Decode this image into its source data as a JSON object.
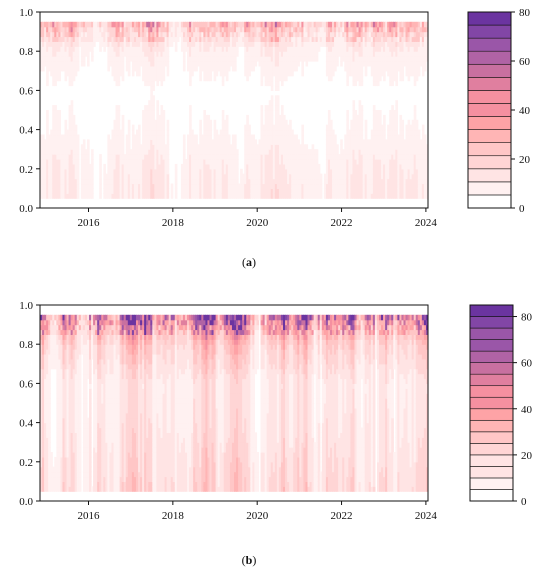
{
  "chart_data": [
    {
      "type": "heatmap",
      "panel_label": "(a)",
      "panel_letter": "a",
      "x_tick_labels": [
        "2016",
        "2018",
        "2020",
        "2022",
        "2024"
      ],
      "x_ticks": [
        2016,
        2018,
        2020,
        2022,
        2024
      ],
      "xlim": [
        2014.85,
        2024.05
      ],
      "y_tick_labels": [
        "0.0",
        "0.2",
        "0.4",
        "0.6",
        "0.8",
        "1.0"
      ],
      "y_ticks": [
        0.0,
        0.2,
        0.4,
        0.6,
        0.8,
        1.0
      ],
      "ylim": [
        0.0,
        1.0
      ],
      "y_data_range": [
        0.05,
        0.95
      ],
      "colorbar_tick_labels": [
        "0",
        "20",
        "40",
        "60",
        "80"
      ],
      "colorbar_ticks": [
        0,
        20,
        40,
        60,
        80
      ],
      "colorbar_range": [
        0,
        80
      ],
      "colorbar_levels": 15,
      "value_profile": [
        {
          "y": 0.05,
          "value": 10
        },
        {
          "y": 0.2,
          "value": 9
        },
        {
          "y": 0.4,
          "value": 5
        },
        {
          "y": 0.6,
          "value": 3
        },
        {
          "y": 0.8,
          "value": 8
        },
        {
          "y": 0.9,
          "value": 16
        },
        {
          "y": 0.95,
          "value": 24
        }
      ]
    },
    {
      "type": "heatmap",
      "panel_label": "(b)",
      "panel_letter": "b",
      "x_tick_labels": [
        "2016",
        "2018",
        "2020",
        "2022",
        "2024"
      ],
      "x_ticks": [
        2016,
        2018,
        2020,
        2022,
        2024
      ],
      "xlim": [
        2014.85,
        2024.05
      ],
      "y_tick_labels": [
        "0.0",
        "0.2",
        "0.4",
        "0.6",
        "0.8",
        "1.0"
      ],
      "y_ticks": [
        0.0,
        0.2,
        0.4,
        0.6,
        0.8,
        1.0
      ],
      "ylim": [
        0.0,
        1.0
      ],
      "y_data_range": [
        0.05,
        0.95
      ],
      "colorbar_tick_labels": [
        "0",
        "20",
        "40",
        "60",
        "80"
      ],
      "colorbar_ticks": [
        0,
        20,
        40,
        60,
        80
      ],
      "colorbar_range": [
        0,
        85
      ],
      "colorbar_levels": 17,
      "value_profile": [
        {
          "y": 0.05,
          "value": 18
        },
        {
          "y": 0.2,
          "value": 16
        },
        {
          "y": 0.4,
          "value": 13
        },
        {
          "y": 0.6,
          "value": 12
        },
        {
          "y": 0.8,
          "value": 22
        },
        {
          "y": 0.9,
          "value": 36
        },
        {
          "y": 0.95,
          "value": 48
        }
      ]
    }
  ],
  "colors": {
    "palette": [
      "#ffffff",
      "#fff1f1",
      "#ffe4e4",
      "#ffd5d5",
      "#ffc6c6",
      "#ffb5b5",
      "#fea3a6",
      "#f590a0",
      "#e07f9f",
      "#c870a0",
      "#b063a5",
      "#9a56a8",
      "#8246a6",
      "#6b34a0"
    ],
    "axis": "#111111"
  }
}
